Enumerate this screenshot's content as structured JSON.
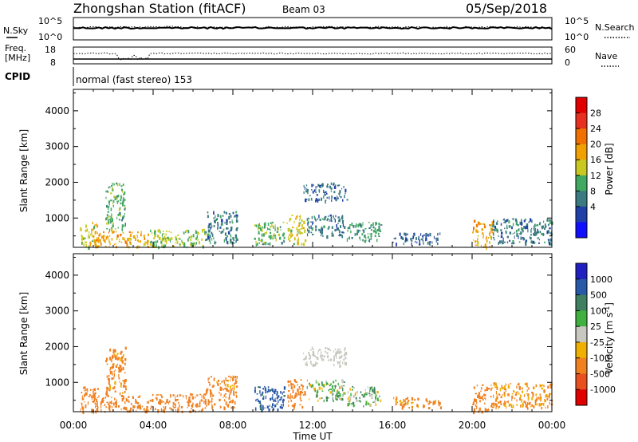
{
  "header": {
    "title": "Zhongshan Station (fitACF)",
    "beam": "Beam 03",
    "date": "05/Sep/2018"
  },
  "status_panels": {
    "nsky_label": "N.Sky",
    "nsky_ticks": [
      "10^5",
      "10^0"
    ],
    "nsearch_label": "N.Search",
    "nsearch_ticks": [
      "10^5",
      "10^0"
    ],
    "freq_label_line1": "Freq.",
    "freq_label_line2": "[MHz]",
    "freq_ticks": [
      "18",
      "8"
    ],
    "nave_label": "Nave",
    "nave_ticks": [
      "60",
      "0"
    ],
    "cpid_label": "CPID",
    "cpid_text": "normal (fast stereo) 153"
  },
  "axes": {
    "x_label": "Time UT",
    "x_ticks": [
      "00:00",
      "04:00",
      "08:00",
      "12:00",
      "16:00",
      "20:00",
      "00:00"
    ],
    "y_label": "Slant Range [km]",
    "y_ticks": [
      "1000",
      "2000",
      "3000",
      "4000"
    ]
  },
  "colorbars": {
    "power": {
      "label": "Power [dB]",
      "ticks": [
        "4",
        "8",
        "12",
        "16",
        "20",
        "24",
        "28"
      ],
      "colors": [
        "#1010ff",
        "#2040a8",
        "#3a7a80",
        "#40a860",
        "#c8c820",
        "#f0a000",
        "#f07000",
        "#e83020",
        "#e00000"
      ]
    },
    "velocity": {
      "label": "Velocity [m s",
      "label_sup": "-1",
      "label_end": "]",
      "ticks": [
        "1000",
        "500",
        "100",
        "25",
        "-25",
        "-100",
        "-500",
        "-1000"
      ],
      "colors": [
        "#2020c0",
        "#2858a8",
        "#408060",
        "#40b040",
        "#c8c8c0",
        "#f0b000",
        "#f08020",
        "#e85020",
        "#e00000"
      ]
    }
  },
  "chart_data": [
    {
      "type": "heatmap",
      "name": "power",
      "x_range_hours": [
        0,
        24
      ],
      "y_range_km": [
        180,
        4600
      ],
      "clusters": [
        {
          "t0": 0.3,
          "t1": 1.2,
          "r0": 200,
          "r1": 900,
          "value": 18
        },
        {
          "t0": 1.0,
          "t1": 3.8,
          "r0": 200,
          "r1": 650,
          "value": 22
        },
        {
          "t0": 1.6,
          "t1": 2.6,
          "r0": 700,
          "r1": 2000,
          "value": 14
        },
        {
          "t0": 3.8,
          "t1": 6.6,
          "r0": 200,
          "r1": 700,
          "value": 16
        },
        {
          "t0": 6.6,
          "t1": 8.2,
          "r0": 300,
          "r1": 1200,
          "value": 10
        },
        {
          "t0": 9.0,
          "t1": 10.6,
          "r0": 250,
          "r1": 900,
          "value": 14
        },
        {
          "t0": 10.7,
          "t1": 11.6,
          "r0": 300,
          "r1": 1100,
          "value": 18
        },
        {
          "t0": 11.7,
          "t1": 13.6,
          "r0": 500,
          "r1": 1100,
          "value": 10
        },
        {
          "t0": 11.5,
          "t1": 13.7,
          "r0": 1500,
          "r1": 2000,
          "value": 9
        },
        {
          "t0": 13.7,
          "t1": 15.4,
          "r0": 350,
          "r1": 900,
          "value": 12
        },
        {
          "t0": 16.0,
          "t1": 18.5,
          "r0": 300,
          "r1": 600,
          "value": 8
        },
        {
          "t0": 20.0,
          "t1": 21.0,
          "r0": 200,
          "r1": 950,
          "value": 22
        },
        {
          "t0": 21.0,
          "t1": 24.0,
          "r0": 300,
          "r1": 1000,
          "value": 10
        }
      ]
    },
    {
      "type": "heatmap",
      "name": "velocity",
      "x_range_hours": [
        0,
        24
      ],
      "y_range_km": [
        180,
        4600
      ],
      "clusters": [
        {
          "t0": 0.3,
          "t1": 1.2,
          "r0": 200,
          "r1": 900,
          "value": -300
        },
        {
          "t0": 1.0,
          "t1": 3.8,
          "r0": 200,
          "r1": 650,
          "value": -250
        },
        {
          "t0": 1.6,
          "t1": 2.6,
          "r0": 700,
          "r1": 2000,
          "value": -200
        },
        {
          "t0": 3.8,
          "t1": 6.6,
          "r0": 200,
          "r1": 700,
          "value": -300
        },
        {
          "t0": 6.6,
          "t1": 8.2,
          "r0": 300,
          "r1": 1200,
          "value": -200
        },
        {
          "t0": 9.0,
          "t1": 10.6,
          "r0": 250,
          "r1": 900,
          "value": 600
        },
        {
          "t0": 10.7,
          "t1": 11.6,
          "r0": 300,
          "r1": 1100,
          "value": -250
        },
        {
          "t0": 11.7,
          "t1": 13.6,
          "r0": 500,
          "r1": 1100,
          "value": 50
        },
        {
          "t0": 11.5,
          "t1": 13.7,
          "r0": 1500,
          "r1": 2000,
          "value": 0
        },
        {
          "t0": 13.7,
          "t1": 15.4,
          "r0": 350,
          "r1": 900,
          "value": 60
        },
        {
          "t0": 16.0,
          "t1": 18.5,
          "r0": 300,
          "r1": 600,
          "value": -150
        },
        {
          "t0": 20.0,
          "t1": 21.0,
          "r0": 200,
          "r1": 950,
          "value": -300
        },
        {
          "t0": 21.0,
          "t1": 24.0,
          "r0": 300,
          "r1": 1000,
          "value": -150
        }
      ]
    }
  ]
}
